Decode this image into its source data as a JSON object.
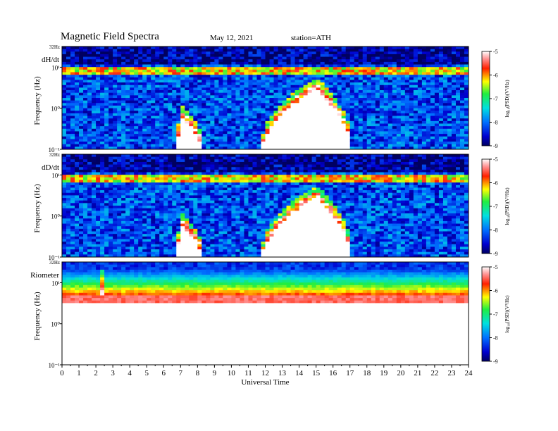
{
  "header": {
    "title": "Magnetic  Field  Spectra",
    "date": "May 12, 2021",
    "station": "station=ATH"
  },
  "chart_data": [
    {
      "type": "heatmap",
      "panel_label": "dH/dt",
      "ylabel": "Frequency  (Hz)",
      "top_label": "32Hz",
      "y_ticks": [
        "10¹",
        "10⁰",
        "10⁻¹"
      ],
      "y_scale": "log",
      "ylim": [
        0.1,
        32
      ],
      "xlim": [
        0,
        24
      ],
      "colorbar": {
        "ticks": [
          "-5",
          "-6",
          "-7",
          "-8",
          "-9"
        ],
        "label": "log₁₀(PSD)(V²/Hz)",
        "range": [
          -9,
          -5
        ]
      },
      "features": {
        "background_level": -8.2,
        "strong_band_hz": 8,
        "activity_events": [
          {
            "start_ut": 6.8,
            "end_ut": 8.3,
            "peak_ut": 7.1,
            "top_hz": 0.8
          },
          {
            "start_ut": 11.8,
            "end_ut": 17.1,
            "peak_ut": 15.0,
            "top_hz": 4.0
          }
        ]
      }
    },
    {
      "type": "heatmap",
      "panel_label": "dD/dt",
      "ylabel": "Frequency  (Hz)",
      "top_label": "32Hz",
      "y_ticks": [
        "10¹",
        "10⁰",
        "10⁻¹"
      ],
      "y_scale": "log",
      "ylim": [
        0.1,
        32
      ],
      "xlim": [
        0,
        24
      ],
      "colorbar": {
        "ticks": [
          "-5",
          "-6",
          "-7",
          "-8",
          "-9"
        ],
        "label": "log₁₀(PSD)(V²/Hz)",
        "range": [
          -9,
          -5
        ]
      },
      "features": {
        "background_level": -8.2,
        "strong_band_hz": 8,
        "activity_events": [
          {
            "start_ut": 6.8,
            "end_ut": 8.3,
            "peak_ut": 7.1,
            "top_hz": 0.8
          },
          {
            "start_ut": 11.8,
            "end_ut": 17.1,
            "peak_ut": 15.0,
            "top_hz": 4.0
          }
        ]
      }
    },
    {
      "type": "heatmap",
      "panel_label": "Riometer",
      "ylabel": "Frequency  (Hz)",
      "top_label": "32Hz",
      "y_ticks": [
        "10¹",
        "10⁰",
        "10⁻¹"
      ],
      "y_scale": "log",
      "ylim": [
        0.1,
        32
      ],
      "xlim": [
        0,
        24
      ],
      "colorbar": {
        "ticks": [
          "-5",
          "-6",
          "-7",
          "-8",
          "-9"
        ],
        "label": "log₁₀(PSD)(V²/Hz)",
        "range": [
          -9,
          -5
        ]
      },
      "features": {
        "saturated_below_hz": 5,
        "blue_band_hz": [
          20,
          32
        ],
        "spike_ut": 2.3
      }
    }
  ],
  "x_axis": {
    "label": "Universal Time",
    "ticks": [
      "0",
      "1",
      "2",
      "3",
      "4",
      "5",
      "6",
      "7",
      "8",
      "9",
      "10",
      "11",
      "12",
      "13",
      "14",
      "15",
      "16",
      "17",
      "18",
      "19",
      "20",
      "21",
      "22",
      "23",
      "24"
    ]
  }
}
